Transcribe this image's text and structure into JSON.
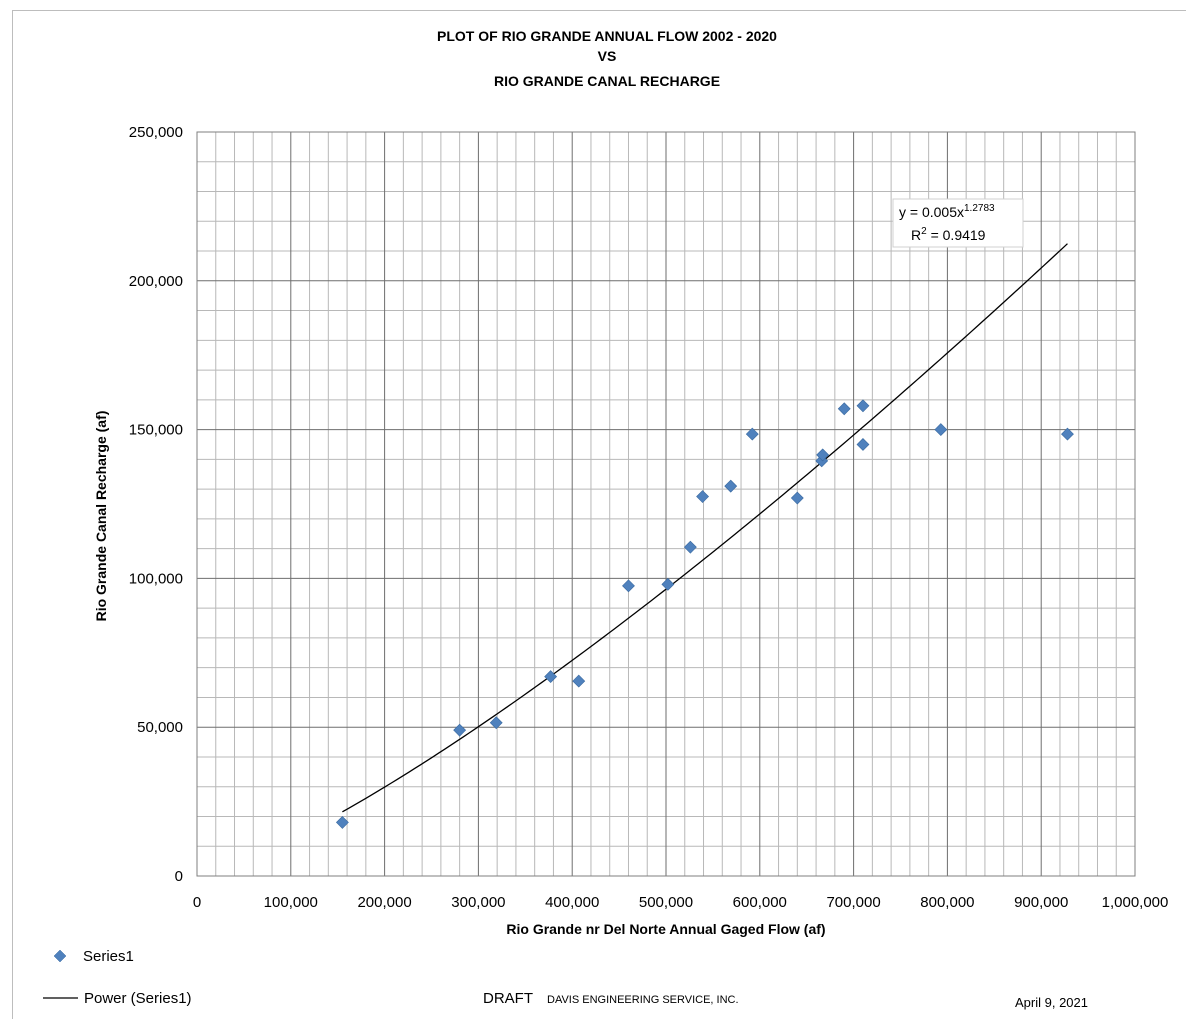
{
  "chart_data": {
    "type": "scatter",
    "title_lines": [
      "PLOT OF RIO GRANDE ANNUAL FLOW 2002 - 2020",
      "VS",
      "RIO GRANDE CANAL RECHARGE"
    ],
    "xlabel": "Rio Grande nr Del Norte Annual Gaged Flow (af)",
    "ylabel": "Rio Grande Canal Recharge (af)",
    "xlim": [
      0,
      1000000
    ],
    "ylim": [
      0,
      250000
    ],
    "x_major_step": 100000,
    "y_major_step": 50000,
    "x_minor_step": 20000,
    "y_minor_step": 10000,
    "x_tick_labels": [
      "0",
      "100,000",
      "200,000",
      "300,000",
      "400,000",
      "500,000",
      "600,000",
      "700,000",
      "800,000",
      "900,000",
      "1,000,000"
    ],
    "y_tick_labels": [
      "0",
      "50,000",
      "100,000",
      "150,000",
      "200,000",
      "250,000"
    ],
    "grid": true,
    "series": [
      {
        "name": "Series1",
        "marker": "diamond",
        "color": "#4F81BD",
        "points": [
          [
            155000,
            18000
          ],
          [
            280000,
            49000
          ],
          [
            319000,
            51500
          ],
          [
            377000,
            67000
          ],
          [
            407000,
            65500
          ],
          [
            460000,
            97500
          ],
          [
            502000,
            98000
          ],
          [
            526000,
            110500
          ],
          [
            539000,
            127500
          ],
          [
            569000,
            131000
          ],
          [
            592000,
            148500
          ],
          [
            640000,
            127000
          ],
          [
            666000,
            139500
          ],
          [
            667000,
            141500
          ],
          [
            690000,
            157000
          ],
          [
            710000,
            158000
          ],
          [
            710000,
            145000
          ],
          [
            793000,
            150000
          ],
          [
            928000,
            148500
          ]
        ]
      }
    ],
    "trendline": {
      "name": "Power (Series1)",
      "type": "power",
      "coefficient": 0.005,
      "exponent": 1.2783,
      "x_from": 155000,
      "x_to": 928000,
      "color": "#000000",
      "equation_text": "y = 0.005x",
      "equation_exponent": "1.2783",
      "r2_label": "R",
      "r2_sup": "2",
      "r2_value": " = 0.9419"
    }
  },
  "legend": {
    "series_label": "Series1",
    "trend_label": "Power (Series1)"
  },
  "footer": {
    "draft": "DRAFT",
    "company": "DAVIS ENGINEERING SERVICE, INC.",
    "date": "April 9, 2021"
  }
}
